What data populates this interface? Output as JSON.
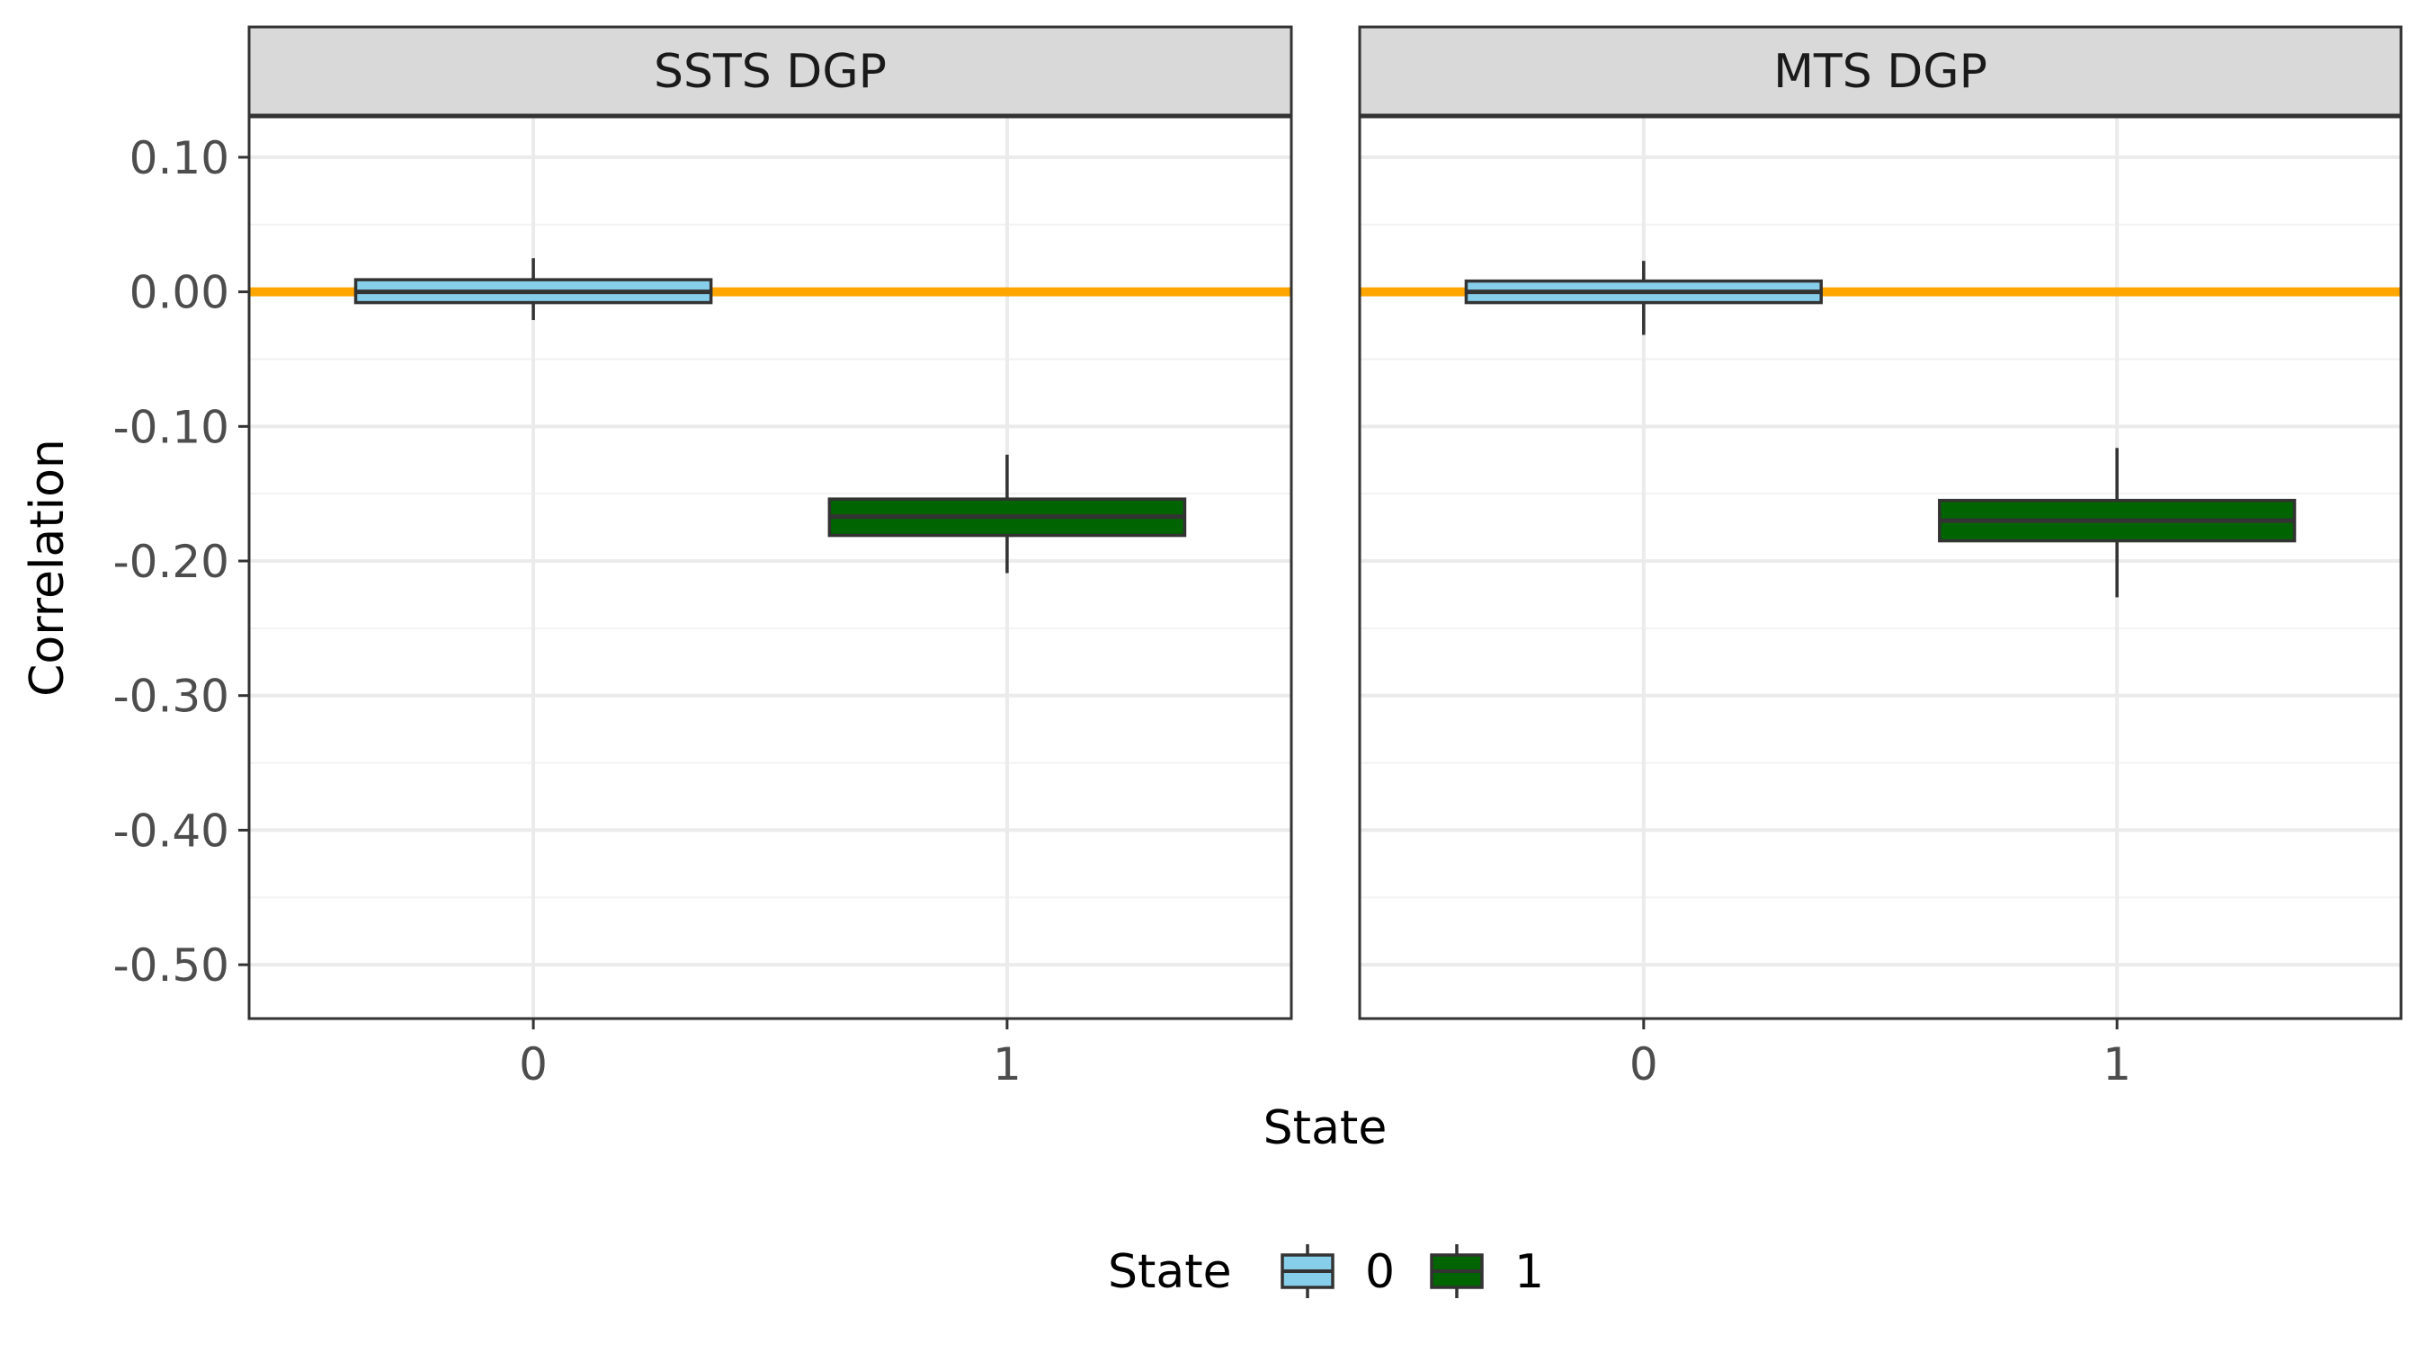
{
  "chart_data": {
    "type": "boxplot",
    "xlabel": "State",
    "ylabel": "Correlation",
    "ylim": [
      -0.54,
      0.13
    ],
    "y_ticks": [
      0.1,
      0.0,
      -0.1,
      -0.2,
      -0.3,
      -0.4,
      -0.5
    ],
    "y_tick_labels": [
      "0.10",
      "0.00",
      "-0.10",
      "-0.20",
      "-0.30",
      "-0.40",
      "-0.50"
    ],
    "categories": [
      "0",
      "1"
    ],
    "reference_line": {
      "y": 0.0,
      "color": "#FFA500"
    },
    "legend": {
      "title": "State",
      "position": "bottom",
      "entries": [
        "0",
        "1"
      ]
    },
    "colors": {
      "0": "#87CEEB",
      "1": "#006400"
    },
    "panels": [
      {
        "title": "SSTS DGP",
        "boxes": [
          {
            "category": "0",
            "whisker_low": -0.021,
            "q1": -0.008,
            "median": 0.0,
            "q3": 0.009,
            "whisker_high": 0.025
          },
          {
            "category": "1",
            "whisker_low": -0.209,
            "q1": -0.181,
            "median": -0.167,
            "q3": -0.154,
            "whisker_high": -0.121
          }
        ]
      },
      {
        "title": "MTS DGP",
        "boxes": [
          {
            "category": "0",
            "whisker_low": -0.032,
            "q1": -0.008,
            "median": 0.0,
            "q3": 0.008,
            "whisker_high": 0.023
          },
          {
            "category": "1",
            "whisker_low": -0.227,
            "q1": -0.185,
            "median": -0.17,
            "q3": -0.155,
            "whisker_high": -0.116
          }
        ]
      }
    ]
  }
}
